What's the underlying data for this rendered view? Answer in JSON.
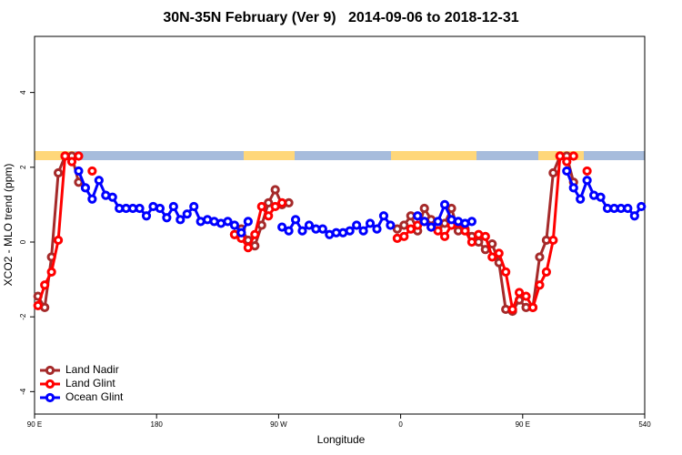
{
  "chart_data": {
    "type": "line",
    "title": "30N-35N February (Ver 9)   2014-09-06 to 2018-12-31",
    "x_label": "Longitude",
    "y_label": "XCO2 - MLO trend (ppm)",
    "xlim": [
      90,
      540
    ],
    "xticks": [
      {
        "value": 90,
        "label": "90 E"
      },
      180,
      {
        "value": 270,
        "label": "90 W"
      },
      {
        "value": 360,
        "label": "0"
      },
      {
        "value": 450,
        "label": "90 E"
      },
      540
    ],
    "ylim": [
      -4.6,
      5.5
    ],
    "yticks": [
      -4,
      -2,
      0,
      2,
      4
    ],
    "legend": "bottom-left",
    "x": [
      92.5,
      97.5,
      102.5,
      107.5,
      112.5,
      117.5,
      122.5,
      127.5,
      132.5,
      137.5,
      142.5,
      147.5,
      152.5,
      157.5,
      162.5,
      167.5,
      172.5,
      177.5,
      182.5,
      187.5,
      192.5,
      197.5,
      202.5,
      207.5,
      212.5,
      217.5,
      222.5,
      227.5,
      232.5,
      237.5,
      242.5,
      247.5,
      252.5,
      257.5,
      262.5,
      267.5,
      272.5,
      277.5,
      282.5,
      287.5,
      292.5,
      297.5,
      302.5,
      307.5,
      312.5,
      317.5,
      322.5,
      327.5,
      332.5,
      337.5,
      342.5,
      347.5,
      352.5,
      357.5,
      362.5,
      367.5,
      372.5,
      377.5,
      382.5,
      387.5,
      392.5,
      397.5,
      402.5,
      407.5,
      412.5,
      417.5,
      422.5,
      427.5,
      432.5,
      437.5,
      442.5,
      447.5,
      452.5,
      457.5,
      462.5,
      467.5,
      472.5,
      477.5,
      482.5,
      487.5,
      492.5,
      497.5,
      502.5,
      507.5,
      512.5,
      517.5,
      522.5,
      527.5,
      532.5,
      537.5
    ],
    "series": [
      {
        "name": "Land Nadir",
        "color": "#a52a2a",
        "values": [
          -1.45,
          -1.75,
          -0.4,
          1.85,
          2.3,
          2.3,
          1.6,
          null,
          null,
          null,
          null,
          null,
          null,
          null,
          null,
          null,
          null,
          null,
          null,
          null,
          null,
          null,
          null,
          null,
          null,
          null,
          null,
          null,
          null,
          0.2,
          0.35,
          0.05,
          -0.1,
          0.45,
          1.05,
          1.4,
          1.0,
          1.05,
          null,
          null,
          null,
          null,
          null,
          null,
          null,
          null,
          null,
          null,
          null,
          null,
          null,
          null,
          null,
          0.35,
          0.45,
          0.7,
          0.3,
          0.9,
          0.6,
          0.4,
          0.5,
          0.9,
          0.3,
          0.35,
          0.15,
          0.0,
          -0.2,
          -0.05,
          -0.55,
          -1.8,
          -1.85,
          -1.55,
          -1.75,
          -1.75,
          -0.4,
          0.05,
          1.85,
          2.3,
          2.3,
          1.6,
          null,
          null,
          null,
          null,
          null,
          null,
          null,
          null,
          null,
          null
        ]
      },
      {
        "name": "Land Glint",
        "color": "#ff0000",
        "values": [
          -1.7,
          -1.15,
          -0.8,
          0.05,
          2.3,
          2.15,
          2.3,
          null,
          1.9,
          null,
          null,
          null,
          null,
          null,
          null,
          null,
          null,
          null,
          null,
          null,
          null,
          null,
          null,
          null,
          null,
          null,
          null,
          null,
          null,
          0.2,
          0.1,
          -0.15,
          0.2,
          0.95,
          0.7,
          0.95,
          1.05,
          null,
          null,
          null,
          null,
          null,
          null,
          null,
          null,
          null,
          null,
          null,
          null,
          null,
          null,
          null,
          null,
          0.1,
          0.15,
          0.35,
          0.45,
          0.55,
          0.4,
          0.3,
          0.15,
          0.45,
          0.5,
          0.3,
          0.0,
          0.2,
          0.15,
          -0.4,
          -0.3,
          -0.8,
          -1.8,
          -1.35,
          -1.45,
          -1.75,
          -1.15,
          -0.8,
          0.05,
          2.3,
          2.15,
          2.3,
          null,
          1.9,
          null,
          null,
          null,
          null,
          null,
          null,
          null,
          null
        ]
      },
      {
        "name": "Ocean Glint",
        "color": "#0000ff",
        "values": [
          null,
          null,
          null,
          null,
          null,
          null,
          1.9,
          1.45,
          1.15,
          1.65,
          1.25,
          1.2,
          0.9,
          0.9,
          0.9,
          0.9,
          0.7,
          0.95,
          0.9,
          0.65,
          0.95,
          0.6,
          0.75,
          0.95,
          0.55,
          0.6,
          0.55,
          0.5,
          0.55,
          0.45,
          0.25,
          0.55,
          null,
          null,
          null,
          null,
          0.4,
          0.3,
          0.6,
          0.3,
          0.45,
          0.35,
          0.35,
          0.2,
          0.25,
          0.25,
          0.3,
          0.45,
          0.3,
          0.5,
          0.35,
          0.7,
          0.45,
          null,
          null,
          null,
          0.7,
          0.55,
          0.4,
          0.55,
          1.0,
          0.6,
          0.55,
          0.5,
          0.55,
          null,
          null,
          null,
          null,
          null,
          null,
          null,
          null,
          null,
          null,
          null,
          null,
          null,
          1.9,
          1.45,
          1.15,
          1.65,
          1.25,
          1.2,
          0.9,
          0.9,
          0.9,
          0.9,
          0.7,
          0.95
        ]
      }
    ]
  }
}
